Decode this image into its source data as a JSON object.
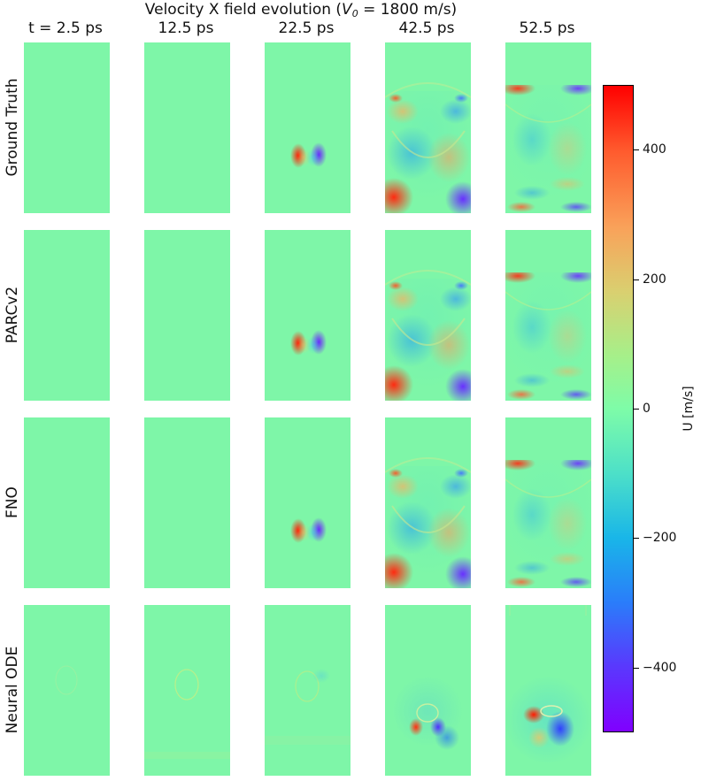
{
  "chart_data": {
    "type": "heatmap",
    "title_prefix": "Velocity X field evolution (",
    "title_symbol": "V",
    "title_subscript": "0",
    "title_suffix": " = 1800 m/s)",
    "columns": [
      "t = 2.5 ps",
      "12.5 ps",
      "22.5 ps",
      "42.5 ps",
      "52.5 ps"
    ],
    "rows": [
      "Ground Truth",
      "PARCv2",
      "FNO",
      "Neural ODE"
    ],
    "colorbar": {
      "label": "U [m/s]",
      "range": [
        -500,
        500
      ],
      "ticks": [
        400,
        200,
        0,
        -200,
        -400
      ],
      "tick_labels": [
        "400",
        "200",
        "0",
        "−200",
        "−400"
      ],
      "colormap": "rainbow"
    }
  },
  "colors": {
    "zero_field": "#7ef6a8",
    "max": "#ff0000",
    "min": "#8000ff"
  }
}
